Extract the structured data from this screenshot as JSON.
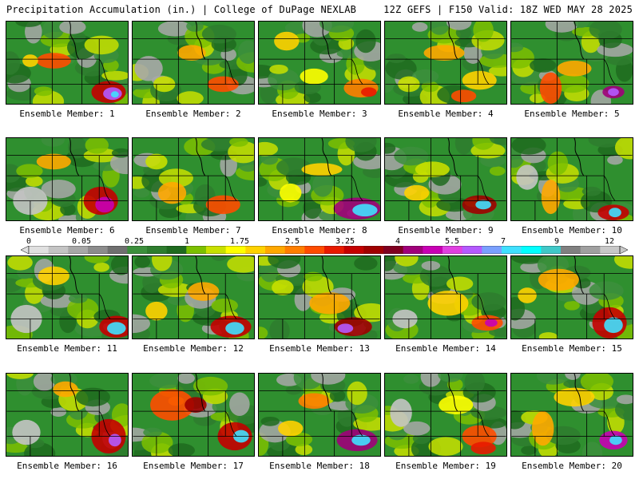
{
  "header": {
    "title_left": "Precipitation Accumulation (in.) | College of DuPage NEXLAB",
    "title_right": "12Z GEFS | F150 Valid: 18Z WED MAY 28 2025"
  },
  "colorbar": {
    "tick_labels": [
      "0",
      "0.05",
      "0.25",
      "1",
      "1.75",
      "2.5",
      "3.25",
      "4",
      "5.5",
      "7",
      "9",
      "12"
    ],
    "colors": [
      "#e0e0e0",
      "#c4c4c4",
      "#a8a8a8",
      "#8c8c8c",
      "#707070",
      "#3c8f3c",
      "#2e7d2e",
      "#1f6b1f",
      "#7cc000",
      "#c8e000",
      "#ffff00",
      "#ffd200",
      "#ffa800",
      "#ff7e00",
      "#ff4c00",
      "#e81a00",
      "#c40000",
      "#a00000",
      "#800020",
      "#a0007a",
      "#c800b4",
      "#e040e0",
      "#b45aff",
      "#7aa0ff",
      "#40e0ff",
      "#00ffff",
      "#40c8c8",
      "#808080",
      "#a0a0a0",
      "#c8c8c8"
    ]
  },
  "panels": [
    {
      "label": "Ensemble Member: 1"
    },
    {
      "label": "Ensemble Member: 2"
    },
    {
      "label": "Ensemble Member: 3"
    },
    {
      "label": "Ensemble Member: 4"
    },
    {
      "label": "Ensemble Member: 5"
    },
    {
      "label": "Ensemble Member: 6"
    },
    {
      "label": "Ensemble Member: 7"
    },
    {
      "label": "Ensemble Member: 8"
    },
    {
      "label": "Ensemble Member: 9"
    },
    {
      "label": "Ensemble Member: 10"
    },
    {
      "label": "Ensemble Member: 11"
    },
    {
      "label": "Ensemble Member: 12"
    },
    {
      "label": "Ensemble Member: 13"
    },
    {
      "label": "Ensemble Member: 14"
    },
    {
      "label": "Ensemble Member: 15"
    },
    {
      "label": "Ensemble Member: 16"
    },
    {
      "label": "Ensemble Member: 17"
    },
    {
      "label": "Ensemble Member: 18"
    },
    {
      "label": "Ensemble Member: 19"
    },
    {
      "label": "Ensemble Member: 20"
    }
  ]
}
